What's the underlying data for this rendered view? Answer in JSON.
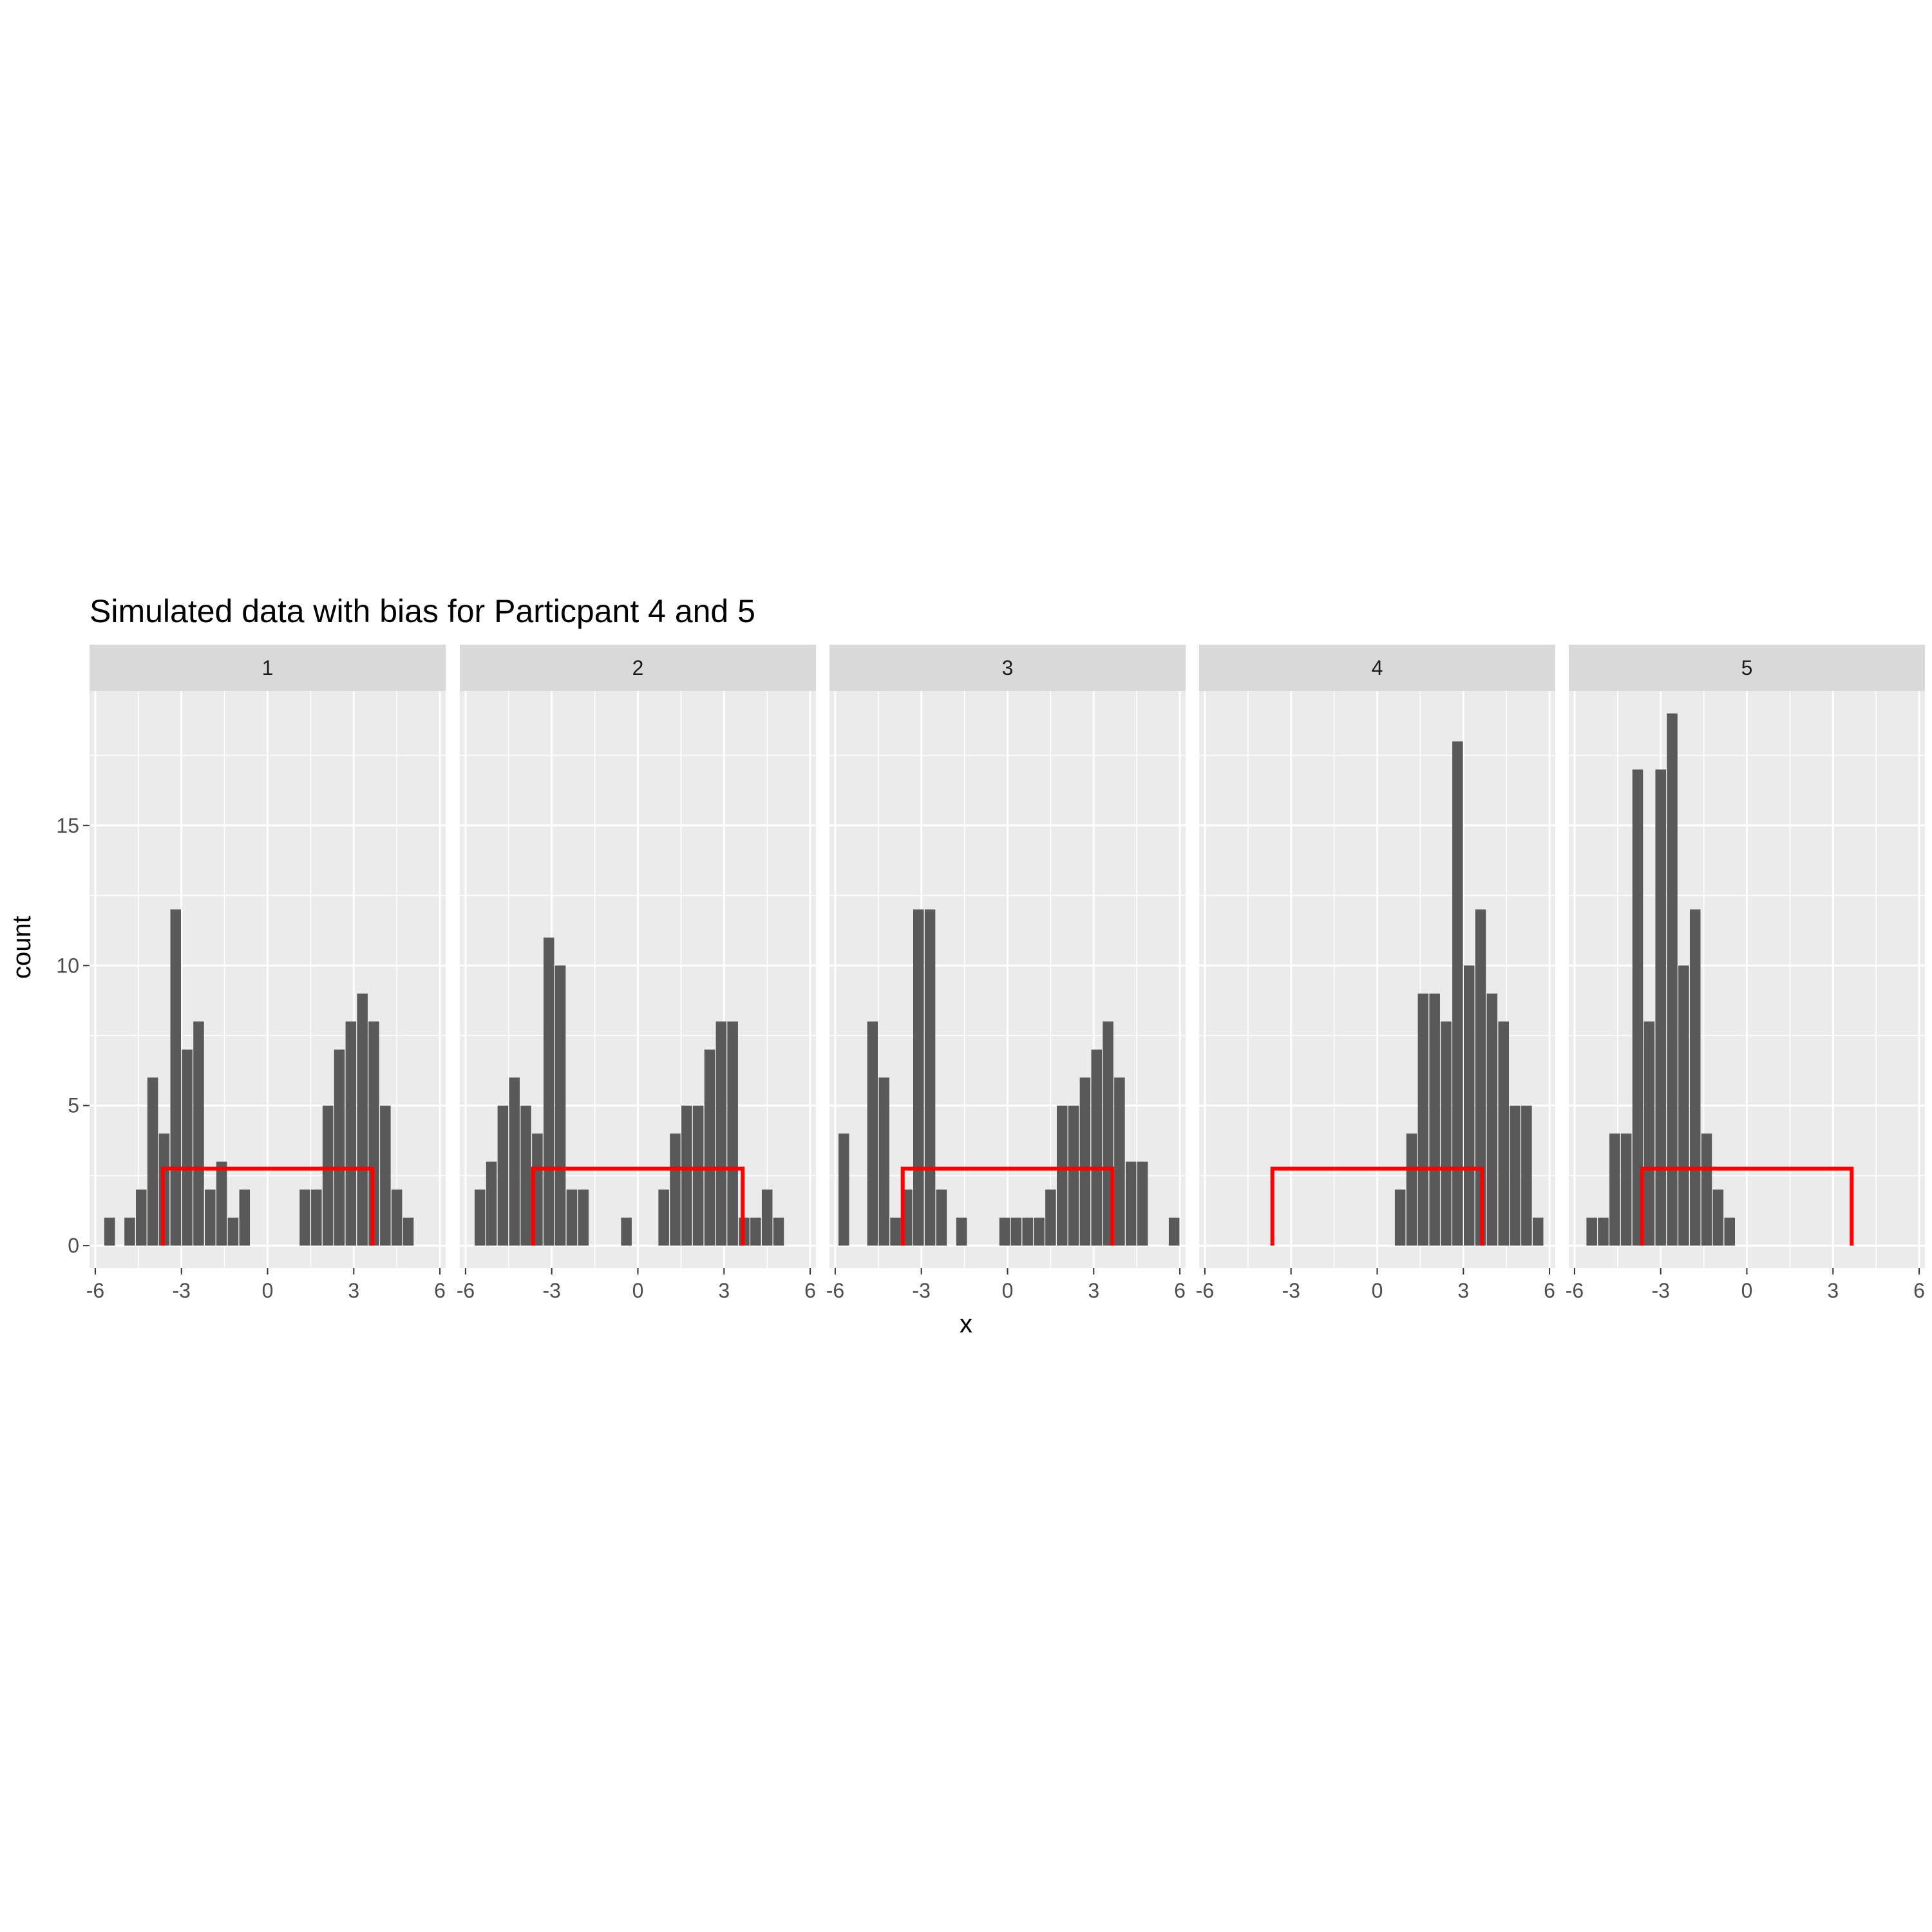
{
  "chart_data": {
    "type": "histogram",
    "title": "Simulated data with bias for Particpant 4 and 5",
    "xlabel": "x",
    "ylabel": "count",
    "xlim": [
      -6.2,
      6.2
    ],
    "ylim": [
      -0.8,
      19.8
    ],
    "x_ticks": [
      -6,
      -3,
      0,
      3,
      6
    ],
    "y_ticks": [
      0,
      5,
      10,
      15
    ],
    "bin_width": 0.37,
    "bar_color": "#595959",
    "bracket_color": "#ff0000",
    "bracket": {
      "x_left": -3.65,
      "x_right": 3.65,
      "y_top": 2.75,
      "y_bottom": 0
    },
    "facets": [
      {
        "label": "1",
        "bins": [
          {
            "x": -5.5,
            "c": 1
          },
          {
            "x": -4.8,
            "c": 1
          },
          {
            "x": -4.4,
            "c": 2
          },
          {
            "x": -4.0,
            "c": 6
          },
          {
            "x": -3.6,
            "c": 4
          },
          {
            "x": -3.2,
            "c": 12
          },
          {
            "x": -2.8,
            "c": 7
          },
          {
            "x": -2.4,
            "c": 8
          },
          {
            "x": -2.0,
            "c": 2
          },
          {
            "x": -1.6,
            "c": 3
          },
          {
            "x": -1.2,
            "c": 1
          },
          {
            "x": -0.8,
            "c": 2
          },
          {
            "x": 1.3,
            "c": 2
          },
          {
            "x": 1.7,
            "c": 2
          },
          {
            "x": 2.1,
            "c": 5
          },
          {
            "x": 2.5,
            "c": 7
          },
          {
            "x": 2.9,
            "c": 8
          },
          {
            "x": 3.3,
            "c": 9
          },
          {
            "x": 3.7,
            "c": 8
          },
          {
            "x": 4.1,
            "c": 5
          },
          {
            "x": 4.5,
            "c": 2
          },
          {
            "x": 4.9,
            "c": 1
          }
        ]
      },
      {
        "label": "2",
        "bins": [
          {
            "x": -5.5,
            "c": 2
          },
          {
            "x": -5.1,
            "c": 3
          },
          {
            "x": -4.7,
            "c": 5
          },
          {
            "x": -4.3,
            "c": 6
          },
          {
            "x": -3.9,
            "c": 5
          },
          {
            "x": -3.5,
            "c": 4
          },
          {
            "x": -3.1,
            "c": 11
          },
          {
            "x": -2.7,
            "c": 10
          },
          {
            "x": -2.3,
            "c": 2
          },
          {
            "x": -1.9,
            "c": 2
          },
          {
            "x": -0.4,
            "c": 1
          },
          {
            "x": 0.9,
            "c": 2
          },
          {
            "x": 1.3,
            "c": 4
          },
          {
            "x": 1.7,
            "c": 5
          },
          {
            "x": 2.1,
            "c": 5
          },
          {
            "x": 2.5,
            "c": 7
          },
          {
            "x": 2.9,
            "c": 8
          },
          {
            "x": 3.3,
            "c": 8
          },
          {
            "x": 3.7,
            "c": 1
          },
          {
            "x": 4.1,
            "c": 1
          },
          {
            "x": 4.5,
            "c": 2
          },
          {
            "x": 4.9,
            "c": 1
          }
        ]
      },
      {
        "label": "3",
        "bins": [
          {
            "x": -5.7,
            "c": 4
          },
          {
            "x": -4.7,
            "c": 8
          },
          {
            "x": -4.3,
            "c": 6
          },
          {
            "x": -3.9,
            "c": 1
          },
          {
            "x": -3.5,
            "c": 2
          },
          {
            "x": -3.1,
            "c": 12
          },
          {
            "x": -2.7,
            "c": 12
          },
          {
            "x": -2.3,
            "c": 2
          },
          {
            "x": -1.6,
            "c": 1
          },
          {
            "x": -0.1,
            "c": 1
          },
          {
            "x": 0.3,
            "c": 1
          },
          {
            "x": 0.7,
            "c": 1
          },
          {
            "x": 1.1,
            "c": 1
          },
          {
            "x": 1.5,
            "c": 2
          },
          {
            "x": 1.9,
            "c": 5
          },
          {
            "x": 2.3,
            "c": 5
          },
          {
            "x": 2.7,
            "c": 6
          },
          {
            "x": 3.1,
            "c": 7
          },
          {
            "x": 3.5,
            "c": 8
          },
          {
            "x": 3.9,
            "c": 6
          },
          {
            "x": 4.3,
            "c": 3
          },
          {
            "x": 4.7,
            "c": 3
          },
          {
            "x": 5.8,
            "c": 1
          }
        ]
      },
      {
        "label": "4",
        "bins": [
          {
            "x": 0.8,
            "c": 2
          },
          {
            "x": 1.2,
            "c": 4
          },
          {
            "x": 1.6,
            "c": 9
          },
          {
            "x": 2.0,
            "c": 9
          },
          {
            "x": 2.4,
            "c": 8
          },
          {
            "x": 2.8,
            "c": 18
          },
          {
            "x": 3.2,
            "c": 10
          },
          {
            "x": 3.6,
            "c": 12
          },
          {
            "x": 4.0,
            "c": 9
          },
          {
            "x": 4.4,
            "c": 8
          },
          {
            "x": 4.8,
            "c": 5
          },
          {
            "x": 5.2,
            "c": 5
          },
          {
            "x": 5.6,
            "c": 1
          }
        ]
      },
      {
        "label": "5",
        "bins": [
          {
            "x": -5.4,
            "c": 1
          },
          {
            "x": -5.0,
            "c": 1
          },
          {
            "x": -4.6,
            "c": 4
          },
          {
            "x": -4.2,
            "c": 4
          },
          {
            "x": -3.8,
            "c": 17
          },
          {
            "x": -3.4,
            "c": 8
          },
          {
            "x": -3.0,
            "c": 17
          },
          {
            "x": -2.6,
            "c": 19
          },
          {
            "x": -2.2,
            "c": 10
          },
          {
            "x": -1.8,
            "c": 12
          },
          {
            "x": -1.4,
            "c": 4
          },
          {
            "x": -1.0,
            "c": 2
          },
          {
            "x": -0.6,
            "c": 1
          }
        ]
      }
    ]
  }
}
